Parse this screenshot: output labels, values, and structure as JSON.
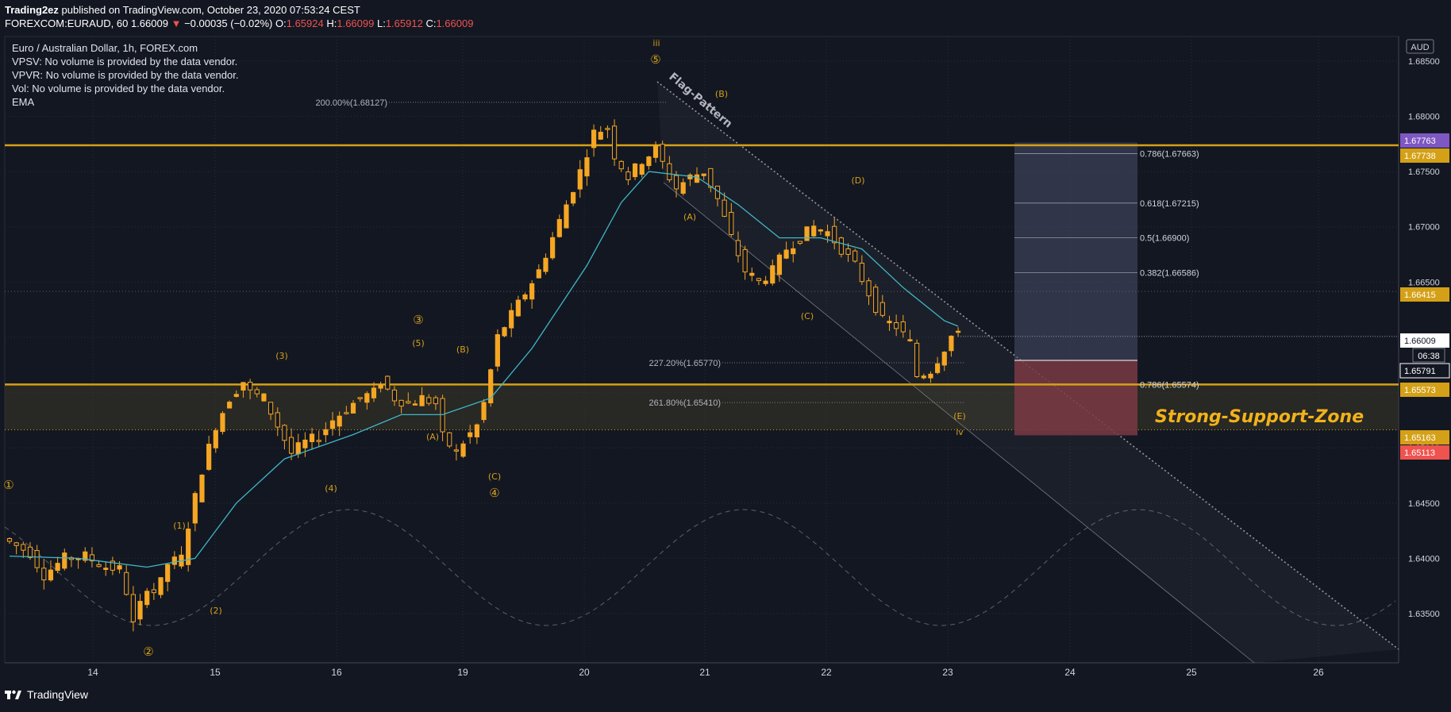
{
  "header": {
    "author": "Trading2ez",
    "published": "published on TradingView.com, October 23, 2020 07:53:24 CEST",
    "symbol_line": "FOREXCOM:EURAUD, 60",
    "last": "1.66009",
    "change_arrow": "▼",
    "change": "−0.00035 (−0.02%)",
    "o_label": "O:",
    "o": "1.65924",
    "h_label": "H:",
    "h": "1.66099",
    "l_label": "L:",
    "l": "1.65912",
    "c_label": "C:",
    "c": "1.66009"
  },
  "legend": {
    "title": "Euro / Australian Dollar, 1h, FOREX.com",
    "vpsv": "VPSV: No volume is provided by the data vendor.",
    "vpvr": "VPVR: No volume is provided by the data vendor.",
    "vol": "Vol: No volume is provided by the data vendor.",
    "ema": "EMA"
  },
  "footer": {
    "brand": "TradingView"
  },
  "colors": {
    "background": "#131722",
    "candle": "#f5a623",
    "ema": "#3fb7c9",
    "level": "#d4a017",
    "annotation": "#d4a017",
    "target_box": "#4a4e6a",
    "stop_box": "#7a3a44",
    "support_zone": "#3a3626",
    "support_text": "#f2b21b"
  },
  "chart_data": {
    "type": "candlestick",
    "symbol": "FOREXCOM:EURAUD",
    "currency": "AUD",
    "countdown": "06:38",
    "x_ticks": [
      "14",
      "15",
      "16",
      "19",
      "20",
      "21",
      "22",
      "23",
      "24",
      "25",
      "26"
    ],
    "y_ticks": [
      "1.63500",
      "1.64000",
      "1.64500",
      "1.65000",
      "1.65500",
      "1.66000",
      "1.66500",
      "1.67000",
      "1.67500",
      "1.68000",
      "1.68500"
    ],
    "ylim": [
      1.6322,
      1.6865
    ],
    "price_tags": [
      {
        "value": "1.67763",
        "color": "#7e57c2"
      },
      {
        "value": "1.67738",
        "color": "#d4a017"
      },
      {
        "value": "1.66415",
        "color": "#d4a017"
      },
      {
        "value": "1.66009",
        "color": "#ffffff"
      },
      {
        "value": "1.65791",
        "color": "#131722"
      },
      {
        "value": "1.65573",
        "color": "#d4a017"
      },
      {
        "value": "1.65163",
        "color": "#d4a017"
      },
      {
        "value": "1.65113",
        "color": "#ef5350"
      }
    ],
    "horizontal_levels": [
      1.67738,
      1.65573
    ],
    "support_zone": [
      1.65163,
      1.65573
    ],
    "fib_labels": [
      {
        "text": "200.00%(1.68127)",
        "value": 1.68127
      },
      {
        "text": "227.20%(1.65770)",
        "value": 1.6577
      },
      {
        "text": "261.80%(1.65410)",
        "value": 1.6541
      },
      {
        "text": "0.786(1.67663)",
        "value": 1.67663
      },
      {
        "text": "0.618(1.67215)",
        "value": 1.67215
      },
      {
        "text": "0.5(1.66900)",
        "value": 1.669
      },
      {
        "text": "0.382(1.66586)",
        "value": 1.66586
      },
      {
        "text": "0.786(1.65574)",
        "value": 1.65574
      }
    ],
    "target_box": {
      "top": 1.67763,
      "bottom": 1.65791
    },
    "stop_box": {
      "top": 1.65791,
      "bottom": 1.65113
    },
    "wave_labels": [
      "①",
      "(1)",
      "(2)",
      "②",
      "(3)",
      "③",
      "(4)",
      "(5)",
      "(A)",
      "(B)",
      "(C)",
      "④",
      "iii",
      "⑤",
      "(B)",
      "(A)",
      "(C)",
      "(D)",
      "(E)",
      "iv"
    ],
    "pattern_label": "Flag-Pattern",
    "support_label": "Strong-Support-Zone",
    "ohlc_path": [
      [
        0,
        1.6418
      ],
      [
        4,
        1.6405
      ],
      [
        6,
        1.6385
      ],
      [
        9,
        1.64
      ],
      [
        12,
        1.6402
      ],
      [
        15,
        1.6392
      ],
      [
        17,
        1.639
      ],
      [
        18,
        1.637
      ],
      [
        19,
        1.634
      ],
      [
        21,
        1.6375
      ],
      [
        22,
        1.637
      ],
      [
        23,
        1.6378
      ],
      [
        24,
        1.6395
      ],
      [
        26,
        1.64
      ],
      [
        27,
        1.643
      ],
      [
        29,
        1.648
      ],
      [
        31,
        1.652
      ],
      [
        33,
        1.6545
      ],
      [
        35,
        1.656
      ],
      [
        36,
        1.655
      ],
      [
        38,
        1.6545
      ],
      [
        40,
        1.652
      ],
      [
        42,
        1.6495
      ],
      [
        44,
        1.6505
      ],
      [
        46,
        1.651
      ],
      [
        48,
        1.6525
      ],
      [
        50,
        1.6535
      ],
      [
        52,
        1.6545
      ],
      [
        54,
        1.655
      ],
      [
        55,
        1.656
      ],
      [
        57,
        1.6545
      ],
      [
        59,
        1.654
      ],
      [
        61,
        1.6545
      ],
      [
        63,
        1.654
      ],
      [
        64,
        1.651
      ],
      [
        66,
        1.6495
      ],
      [
        67,
        1.6505
      ],
      [
        69,
        1.652
      ],
      [
        70,
        1.654
      ],
      [
        72,
        1.66
      ],
      [
        74,
        1.662
      ],
      [
        76,
        1.664
      ],
      [
        78,
        1.666
      ],
      [
        80,
        1.669
      ],
      [
        82,
        1.672
      ],
      [
        84,
        1.675
      ],
      [
        86,
        1.6785
      ],
      [
        88,
        1.679
      ],
      [
        89,
        1.6765
      ],
      [
        91,
        1.6745
      ],
      [
        93,
        1.676
      ],
      [
        95,
        1.677
      ],
      [
        97,
        1.6745
      ],
      [
        98,
        1.6735
      ],
      [
        100,
        1.6745
      ],
      [
        102,
        1.675
      ],
      [
        104,
        1.6725
      ],
      [
        106,
        1.669
      ],
      [
        108,
        1.666
      ],
      [
        110,
        1.665
      ],
      [
        112,
        1.666
      ],
      [
        114,
        1.668
      ],
      [
        116,
        1.669
      ],
      [
        118,
        1.67
      ],
      [
        120,
        1.6695
      ],
      [
        122,
        1.668
      ],
      [
        124,
        1.6665
      ],
      [
        126,
        1.664
      ],
      [
        128,
        1.6615
      ],
      [
        130,
        1.661
      ],
      [
        132,
        1.6595
      ],
      [
        133,
        1.6565
      ],
      [
        135,
        1.657
      ],
      [
        137,
        1.659
      ],
      [
        138,
        1.6601
      ]
    ],
    "ema_path": [
      [
        0,
        1.6402
      ],
      [
        10,
        1.64
      ],
      [
        20,
        1.6392
      ],
      [
        27,
        1.64
      ],
      [
        33,
        1.645
      ],
      [
        40,
        1.649
      ],
      [
        50,
        1.6512
      ],
      [
        57,
        1.653
      ],
      [
        63,
        1.653
      ],
      [
        70,
        1.6545
      ],
      [
        76,
        1.659
      ],
      [
        84,
        1.6665
      ],
      [
        89,
        1.6722
      ],
      [
        93,
        1.675
      ],
      [
        100,
        1.6745
      ],
      [
        106,
        1.672
      ],
      [
        112,
        1.669
      ],
      [
        118,
        1.669
      ],
      [
        124,
        1.668
      ],
      [
        130,
        1.6645
      ],
      [
        136,
        1.6615
      ],
      [
        138,
        1.661
      ]
    ]
  }
}
